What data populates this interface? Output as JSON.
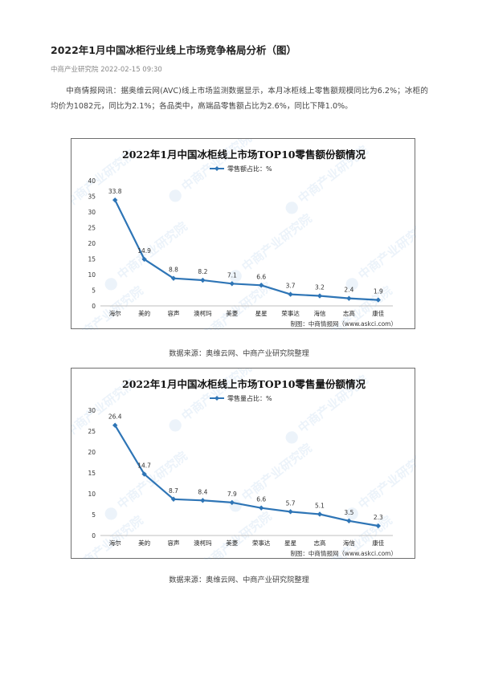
{
  "article": {
    "title": "2022年1月中国冰柜行业线上市场竞争格局分析（图）",
    "meta": "中商产业研究院 2022-02-15 09:30",
    "paragraph": "中商情报网讯：据奥维云网(AVC)线上市场监测数据显示，本月冰柜线上零售额规模同比为6.2%；冰柜的均价为1082元，同比为2.1%；各品类中，高端品零售额占比为2.6%，同比下降1.0%。"
  },
  "watermark": "中商产业研究院",
  "chart_data": [
    {
      "type": "line",
      "title": "2022年1月中国冰柜线上市场TOP10零售额份额情况",
      "legend": "零售额占比：%",
      "legend_position": "top-left",
      "categories": [
        "海尔",
        "美的",
        "容声",
        "澳柯玛",
        "美菱",
        "星星",
        "荣事达",
        "海信",
        "志高",
        "康佳"
      ],
      "series": [
        {
          "name": "零售额占比：%",
          "values": [
            33.8,
            14.9,
            8.8,
            8.2,
            7.1,
            6.6,
            3.7,
            3.2,
            2.4,
            1.9
          ],
          "color": "#2e75b6"
        }
      ],
      "yticks": [
        0,
        5,
        10,
        15,
        20,
        25,
        30,
        35,
        40
      ],
      "ylim": [
        0,
        40
      ],
      "grid": false,
      "source_note": "制图：中商情报网（www.askci.com）",
      "caption": "数据来源：奥维云网、中商产业研究院整理"
    },
    {
      "type": "line",
      "title": "2022年1月中国冰柜线上市场TOP10零售量份额情况",
      "legend": "零售量占比：%",
      "legend_position": "top-left",
      "categories": [
        "海尔",
        "美的",
        "容声",
        "澳柯玛",
        "美菱",
        "荣事达",
        "星星",
        "志高",
        "海信",
        "康佳"
      ],
      "series": [
        {
          "name": "零售量占比：%",
          "values": [
            26.4,
            14.7,
            8.7,
            8.4,
            7.9,
            6.6,
            5.7,
            5.1,
            3.5,
            2.3
          ],
          "color": "#2e75b6"
        }
      ],
      "yticks": [
        0,
        5,
        10,
        15,
        20,
        25,
        30
      ],
      "ylim": [
        0,
        30
      ],
      "grid": false,
      "source_note": "制图：中商情报网（www.askci.com）",
      "caption": "数据来源：奥维云网、中商产业研究院整理"
    }
  ]
}
